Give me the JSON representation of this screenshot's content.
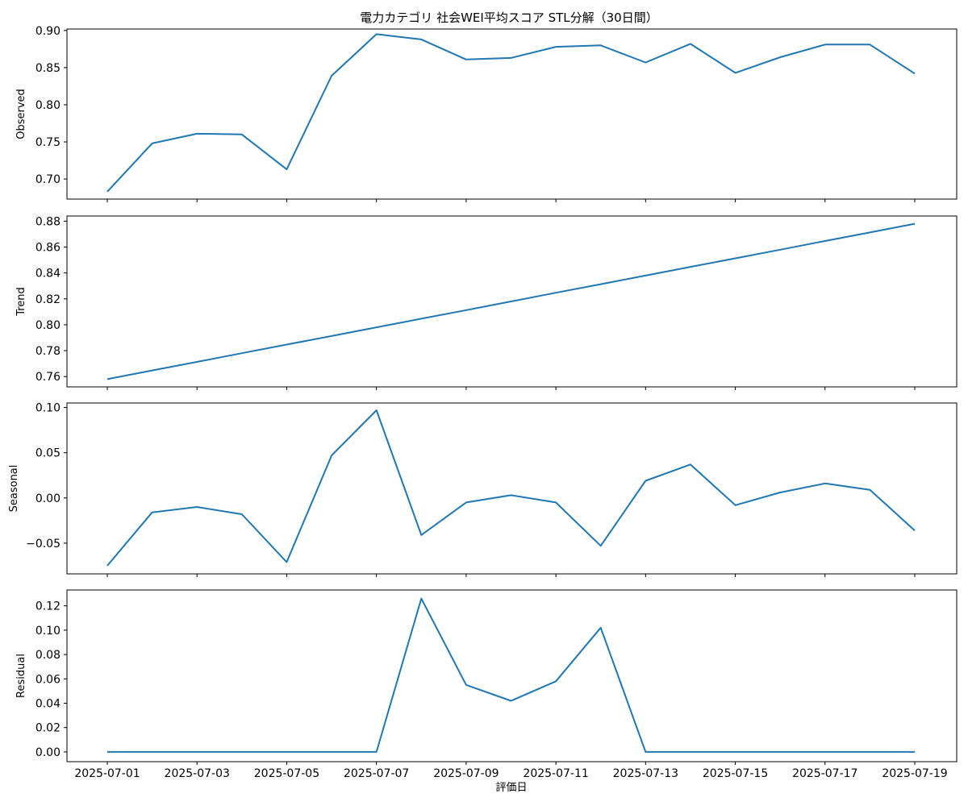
{
  "chart_data": {
    "type": "line",
    "title": "電力カテゴリ 社会WEI平均スコア STL分解（30日間）",
    "xlabel": "評価日",
    "x": [
      "2025-07-01",
      "2025-07-02",
      "2025-07-03",
      "2025-07-04",
      "2025-07-05",
      "2025-07-06",
      "2025-07-07",
      "2025-07-08",
      "2025-07-09",
      "2025-07-10",
      "2025-07-11",
      "2025-07-12",
      "2025-07-13",
      "2025-07-14",
      "2025-07-15",
      "2025-07-16",
      "2025-07-17",
      "2025-07-18",
      "2025-07-19"
    ],
    "xticks": [
      "2025-07-01",
      "2025-07-03",
      "2025-07-05",
      "2025-07-07",
      "2025-07-09",
      "2025-07-11",
      "2025-07-13",
      "2025-07-15",
      "2025-07-17",
      "2025-07-19"
    ],
    "line_color": "#1f77b4",
    "panels": [
      {
        "ylabel": "Observed",
        "ylim": [
          0.673,
          0.902
        ],
        "yticks": [
          0.7,
          0.75,
          0.8,
          0.85,
          0.9
        ],
        "ytick_labels": [
          "0.70",
          "0.75",
          "0.80",
          "0.85",
          "0.90"
        ],
        "values": [
          0.683,
          0.748,
          0.761,
          0.76,
          0.713,
          0.839,
          0.895,
          0.888,
          0.861,
          0.863,
          0.878,
          0.88,
          0.857,
          0.882,
          0.843,
          0.864,
          0.881,
          0.881,
          0.842
        ]
      },
      {
        "ylabel": "Trend",
        "ylim": [
          0.752,
          0.884
        ],
        "yticks": [
          0.76,
          0.78,
          0.8,
          0.82,
          0.84,
          0.86,
          0.88
        ],
        "ytick_labels": [
          "0.76",
          "0.78",
          "0.80",
          "0.82",
          "0.84",
          "0.86",
          "0.88"
        ],
        "values": [
          0.758,
          0.7647,
          0.7713,
          0.778,
          0.7847,
          0.7913,
          0.798,
          0.8047,
          0.8113,
          0.818,
          0.8247,
          0.8313,
          0.838,
          0.8447,
          0.8513,
          0.858,
          0.8647,
          0.8713,
          0.878
        ]
      },
      {
        "ylabel": "Seasonal",
        "ylim": [
          -0.084,
          0.105
        ],
        "yticks": [
          -0.05,
          0.0,
          0.05,
          0.1
        ],
        "ytick_labels": [
          "−0.05",
          "0.00",
          "0.05",
          "0.10"
        ],
        "values": [
          -0.075,
          -0.016,
          -0.01,
          -0.018,
          -0.071,
          0.047,
          0.097,
          -0.041,
          -0.005,
          0.003,
          -0.005,
          -0.053,
          0.019,
          0.037,
          -0.008,
          0.006,
          0.016,
          0.009,
          -0.036
        ]
      },
      {
        "ylabel": "Residual",
        "ylim": [
          -0.008,
          0.133
        ],
        "yticks": [
          0.0,
          0.02,
          0.04,
          0.06,
          0.08,
          0.1,
          0.12
        ],
        "ytick_labels": [
          "0.00",
          "0.02",
          "0.04",
          "0.06",
          "0.08",
          "0.10",
          "0.12"
        ],
        "values": [
          0,
          0,
          0,
          0,
          0,
          0,
          0,
          0.126,
          0.055,
          0.042,
          0.058,
          0.102,
          0,
          0,
          0,
          0,
          0,
          0,
          0
        ]
      }
    ]
  }
}
